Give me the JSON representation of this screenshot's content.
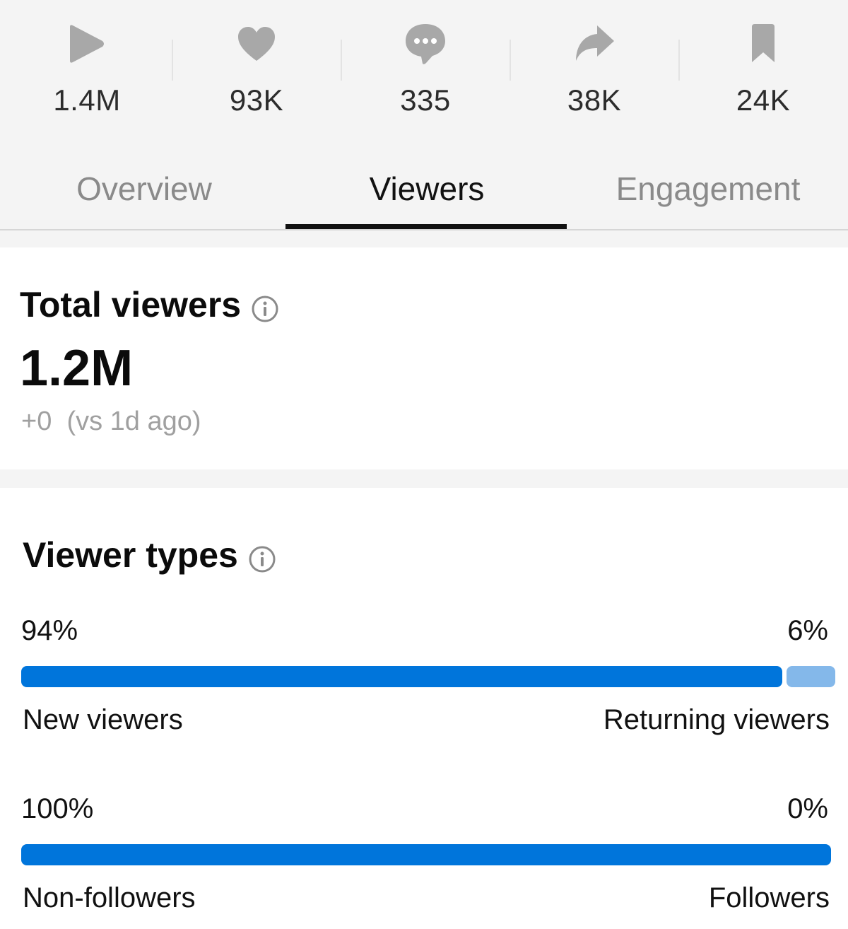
{
  "stats": [
    {
      "icon": "play-icon",
      "value": "1.4M"
    },
    {
      "icon": "heart-icon",
      "value": "93K"
    },
    {
      "icon": "comment-icon",
      "value": "335"
    },
    {
      "icon": "share-icon",
      "value": "38K"
    },
    {
      "icon": "bookmark-icon",
      "value": "24K"
    }
  ],
  "tabs": [
    {
      "label": "Overview",
      "active": false
    },
    {
      "label": "Viewers",
      "active": true
    },
    {
      "label": "Engagement",
      "active": false
    }
  ],
  "total_viewers": {
    "title": "Total viewers",
    "value": "1.2M",
    "delta": "+0",
    "comparison": "(vs 1d ago)"
  },
  "viewer_types": {
    "title": "Viewer types",
    "rows": [
      {
        "left_pct": "94%",
        "right_pct": "6%",
        "left_label": "New viewers",
        "right_label": "Returning viewers",
        "left_fraction": 0.94
      },
      {
        "left_pct": "100%",
        "right_pct": "0%",
        "left_label": "Non-followers",
        "right_label": "Followers",
        "left_fraction": 1.0
      }
    ]
  },
  "colors": {
    "accent": "#0075db",
    "accent_light": "#84b8ea",
    "icon_gray": "#a8a8a8"
  }
}
